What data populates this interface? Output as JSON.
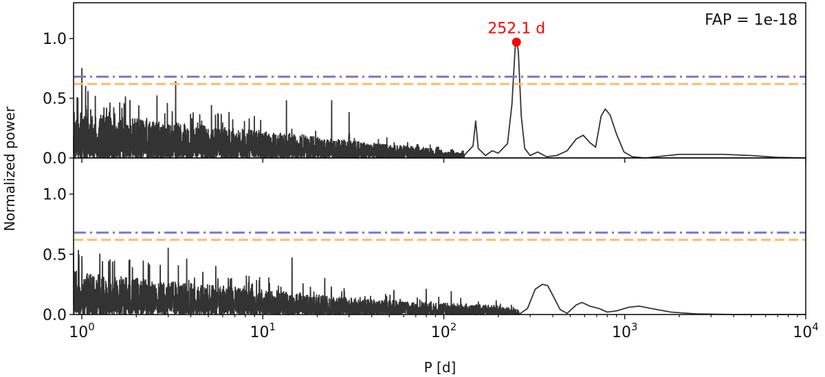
{
  "chart_data": {
    "type": "line",
    "x_scale": "log",
    "xlim": [
      0.9,
      10000
    ],
    "xlabel": "P [d]",
    "ylabel": "Normalized power",
    "ylim": [
      0,
      1.3
    ],
    "x_ticks": [
      {
        "value": 1,
        "base": "10",
        "exp": "0"
      },
      {
        "value": 10,
        "base": "10",
        "exp": "1"
      },
      {
        "value": 100,
        "base": "10",
        "exp": "2"
      },
      {
        "value": 1000,
        "base": "10",
        "exp": "3"
      },
      {
        "value": 10000,
        "base": "10",
        "exp": "4"
      }
    ],
    "y_ticks": [
      {
        "value": 0,
        "label": "0.0"
      },
      {
        "value": 0.5,
        "label": "0.5"
      },
      {
        "value": 1.0,
        "label": "1.0"
      }
    ],
    "colors": {
      "periodogram": "#333333",
      "fap_line_1": "#7777cc",
      "fap_line_2": "#ffbb66",
      "peak": "#ff0000"
    },
    "panels": [
      {
        "name": "top",
        "fap_text": "FAP = 1e-18",
        "peak_label": "252.1 d",
        "peak": {
          "x": 252.1,
          "y": 0.97
        },
        "threshold_lines": [
          {
            "style": "dashdot",
            "y": 0.68
          },
          {
            "style": "dashed",
            "y": 0.62
          }
        ],
        "seed": 7,
        "envelope": [
          [
            0.9,
            0.32
          ],
          [
            1.0,
            0.3
          ],
          [
            3.0,
            0.24
          ],
          [
            10.0,
            0.18
          ],
          [
            20.0,
            0.14
          ],
          [
            40.0,
            0.1
          ],
          [
            80.0,
            0.07
          ],
          [
            100.0,
            0.05
          ],
          [
            130.0,
            0.03
          ]
        ],
        "spikes": [
          {
            "x": 1.0,
            "y": 0.75
          },
          {
            "x": 3.3,
            "y": 0.64
          },
          {
            "x": 1.05,
            "y": 0.6
          },
          {
            "x": 2.6,
            "y": 0.52
          },
          {
            "x": 0.95,
            "y": 0.5
          },
          {
            "x": 13.5,
            "y": 0.48
          },
          {
            "x": 24.0,
            "y": 0.48
          },
          {
            "x": 5.2,
            "y": 0.44
          },
          {
            "x": 1.5,
            "y": 0.42
          },
          {
            "x": 30.0,
            "y": 0.38
          }
        ],
        "smooth": [
          [
            130.0,
            0.0
          ],
          [
            145.0,
            0.1
          ],
          [
            150.0,
            0.31
          ],
          [
            155.0,
            0.08
          ],
          [
            170.0,
            0.02
          ],
          [
            185.0,
            0.06
          ],
          [
            200.0,
            0.04
          ],
          [
            225.0,
            0.12
          ],
          [
            238.0,
            0.45
          ],
          [
            248.0,
            0.93
          ],
          [
            252.1,
            0.97
          ],
          [
            258.0,
            0.9
          ],
          [
            268.0,
            0.35
          ],
          [
            280.0,
            0.08
          ],
          [
            300.0,
            0.02
          ],
          [
            330.0,
            0.05
          ],
          [
            370.0,
            0.01
          ],
          [
            420.0,
            0.02
          ],
          [
            480.0,
            0.06
          ],
          [
            540.0,
            0.16
          ],
          [
            590.0,
            0.19
          ],
          [
            640.0,
            0.13
          ],
          [
            690.0,
            0.09
          ],
          [
            740.0,
            0.35
          ],
          [
            780.0,
            0.41
          ],
          [
            830.0,
            0.36
          ],
          [
            900.0,
            0.2
          ],
          [
            990.0,
            0.05
          ],
          [
            1100.0,
            0.01
          ],
          [
            1300.0,
            0.0
          ],
          [
            2000.0,
            0.03
          ],
          [
            3500.0,
            0.03
          ],
          [
            5000.0,
            0.02
          ],
          [
            7000.0,
            0.005
          ],
          [
            10000.0,
            0.0
          ]
        ]
      },
      {
        "name": "bottom",
        "threshold_lines": [
          {
            "style": "dashdot",
            "y": 0.68
          },
          {
            "style": "dashed",
            "y": 0.62
          }
        ],
        "seed": 19,
        "envelope": [
          [
            0.9,
            0.3
          ],
          [
            1.0,
            0.28
          ],
          [
            3.0,
            0.22
          ],
          [
            10.0,
            0.17
          ],
          [
            20.0,
            0.13
          ],
          [
            40.0,
            0.1
          ],
          [
            80.0,
            0.08
          ],
          [
            130.0,
            0.07
          ],
          [
            200.0,
            0.06
          ],
          [
            260.0,
            0.03
          ]
        ],
        "spikes": [
          {
            "x": 3.0,
            "y": 0.55
          },
          {
            "x": 1.0,
            "y": 0.48
          },
          {
            "x": 14.5,
            "y": 0.47
          },
          {
            "x": 1.3,
            "y": 0.44
          },
          {
            "x": 3.8,
            "y": 0.46
          },
          {
            "x": 22.0,
            "y": 0.3
          },
          {
            "x": 5.5,
            "y": 0.4
          },
          {
            "x": 53.0,
            "y": 0.2
          },
          {
            "x": 80.0,
            "y": 0.21
          },
          {
            "x": 110.0,
            "y": 0.19
          }
        ],
        "smooth": [
          [
            260.0,
            0.01
          ],
          [
            290.0,
            0.05
          ],
          [
            320.0,
            0.21
          ],
          [
            350.0,
            0.25
          ],
          [
            375.0,
            0.24
          ],
          [
            400.0,
            0.16
          ],
          [
            440.0,
            0.04
          ],
          [
            480.0,
            0.01
          ],
          [
            540.0,
            0.08
          ],
          [
            580.0,
            0.1
          ],
          [
            640.0,
            0.07
          ],
          [
            720.0,
            0.05
          ],
          [
            800.0,
            0.02
          ],
          [
            900.0,
            0.03
          ],
          [
            1050.0,
            0.06
          ],
          [
            1200.0,
            0.07
          ],
          [
            1400.0,
            0.05
          ],
          [
            1800.0,
            0.02
          ],
          [
            2500.0,
            0.005
          ],
          [
            4000.0,
            0.0
          ],
          [
            10000.0,
            0.0
          ]
        ]
      }
    ]
  }
}
